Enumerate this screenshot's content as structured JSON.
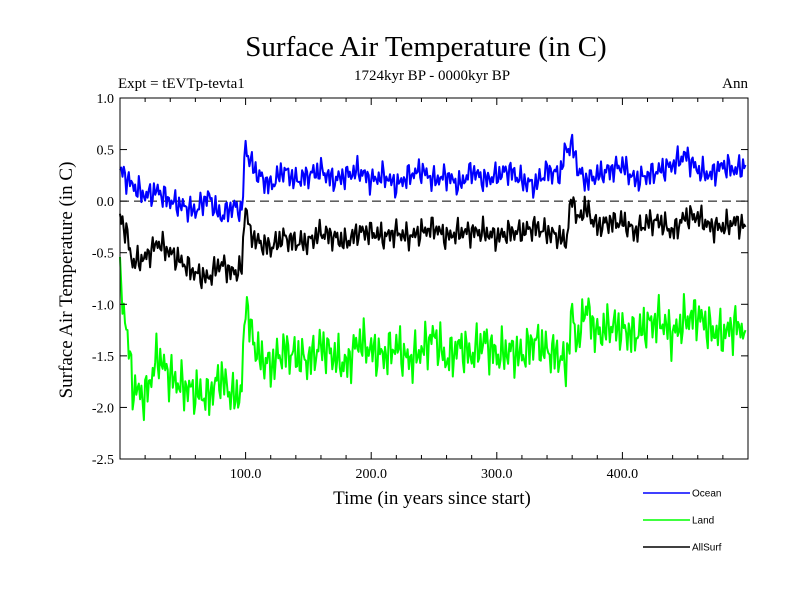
{
  "chart_data": {
    "type": "line",
    "title": "Surface Air Temperature (in C)",
    "subtitle": "1724kyr BP - 0000kyr BP",
    "experiment_label": "Expt = tEVTp-tevta1",
    "season_label": "Ann",
    "xlabel": "Time (in years since start)",
    "ylabel": "Surface Air Temperature (in C)",
    "xlim": [
      0,
      500
    ],
    "ylim": [
      -2.5,
      1.0
    ],
    "x_ticks": [
      100,
      200,
      300,
      400
    ],
    "x_tick_labels": [
      "100.0",
      "200.0",
      "300.0",
      "400.0"
    ],
    "y_ticks": [
      -2.5,
      -2.0,
      -1.5,
      -1.0,
      -0.5,
      0.0,
      0.5,
      1.0
    ],
    "y_tick_labels": [
      "-2.5",
      "-2.0",
      "-1.5",
      "-1.0",
      "-0.5",
      "0.0",
      "0.5",
      "1.0"
    ],
    "reference_line": 0.0,
    "legend_position": "bottom-right, below plot",
    "series": [
      {
        "name": "Ocean",
        "color": "#0000ff",
        "x": [
          0,
          10,
          20,
          30,
          40,
          50,
          60,
          70,
          80,
          90,
          97,
          100,
          103,
          110,
          120,
          130,
          140,
          150,
          160,
          170,
          180,
          190,
          200,
          210,
          220,
          230,
          240,
          250,
          260,
          270,
          280,
          290,
          300,
          310,
          320,
          330,
          340,
          350,
          355,
          360,
          365,
          370,
          380,
          390,
          400,
          410,
          420,
          430,
          440,
          450,
          460,
          470,
          480,
          490,
          498
        ],
        "values": [
          0.3,
          0.15,
          0.05,
          0.1,
          0.0,
          -0.05,
          -0.1,
          0.05,
          -0.15,
          -0.05,
          -0.1,
          0.55,
          0.4,
          0.25,
          0.15,
          0.3,
          0.2,
          0.25,
          0.3,
          0.2,
          0.25,
          0.3,
          0.2,
          0.25,
          0.15,
          0.25,
          0.3,
          0.2,
          0.25,
          0.15,
          0.3,
          0.2,
          0.25,
          0.3,
          0.2,
          0.15,
          0.3,
          0.25,
          0.5,
          0.55,
          0.3,
          0.2,
          0.25,
          0.3,
          0.35,
          0.2,
          0.25,
          0.3,
          0.35,
          0.45,
          0.3,
          0.25,
          0.35,
          0.3,
          0.35
        ]
      },
      {
        "name": "Land",
        "color": "#00ff00",
        "x": [
          0,
          5,
          10,
          20,
          30,
          40,
          50,
          60,
          70,
          80,
          90,
          97,
          100,
          103,
          110,
          120,
          130,
          140,
          150,
          160,
          170,
          180,
          190,
          200,
          210,
          220,
          230,
          240,
          250,
          260,
          270,
          280,
          290,
          300,
          310,
          320,
          330,
          340,
          350,
          355,
          360,
          365,
          370,
          380,
          390,
          400,
          410,
          420,
          430,
          440,
          450,
          460,
          470,
          480,
          490,
          498
        ],
        "values": [
          -0.8,
          -1.2,
          -1.8,
          -1.9,
          -1.5,
          -1.7,
          -1.8,
          -1.85,
          -1.9,
          -1.7,
          -1.9,
          -1.85,
          -0.9,
          -1.2,
          -1.5,
          -1.6,
          -1.45,
          -1.5,
          -1.55,
          -1.4,
          -1.5,
          -1.6,
          -1.35,
          -1.45,
          -1.5,
          -1.4,
          -1.55,
          -1.45,
          -1.3,
          -1.55,
          -1.4,
          -1.5,
          -1.35,
          -1.5,
          -1.45,
          -1.5,
          -1.35,
          -1.45,
          -1.5,
          -1.6,
          -1.1,
          -1.4,
          -1.0,
          -1.3,
          -1.2,
          -1.25,
          -1.3,
          -1.2,
          -1.15,
          -1.3,
          -1.15,
          -1.1,
          -1.25,
          -1.3,
          -1.2,
          -1.25
        ]
      },
      {
        "name": "AllSurf",
        "color": "#000000",
        "x": [
          0,
          5,
          10,
          20,
          30,
          40,
          50,
          60,
          70,
          80,
          90,
          97,
          100,
          103,
          110,
          120,
          130,
          140,
          150,
          160,
          170,
          180,
          190,
          200,
          210,
          220,
          230,
          240,
          250,
          260,
          270,
          280,
          290,
          300,
          310,
          320,
          330,
          340,
          350,
          355,
          360,
          365,
          370,
          380,
          390,
          400,
          410,
          420,
          430,
          440,
          450,
          460,
          470,
          480,
          490,
          498
        ],
        "values": [
          -0.15,
          -0.3,
          -0.6,
          -0.55,
          -0.4,
          -0.5,
          -0.6,
          -0.7,
          -0.75,
          -0.6,
          -0.7,
          -0.65,
          0.0,
          -0.3,
          -0.4,
          -0.45,
          -0.35,
          -0.4,
          -0.4,
          -0.3,
          -0.35,
          -0.4,
          -0.3,
          -0.3,
          -0.35,
          -0.3,
          -0.35,
          -0.3,
          -0.25,
          -0.35,
          -0.3,
          -0.3,
          -0.3,
          -0.35,
          -0.3,
          -0.3,
          -0.25,
          -0.3,
          -0.35,
          -0.4,
          0.05,
          -0.2,
          -0.05,
          -0.25,
          -0.2,
          -0.2,
          -0.3,
          -0.2,
          -0.2,
          -0.3,
          -0.15,
          -0.15,
          -0.25,
          -0.25,
          -0.2,
          -0.25
        ]
      }
    ]
  }
}
